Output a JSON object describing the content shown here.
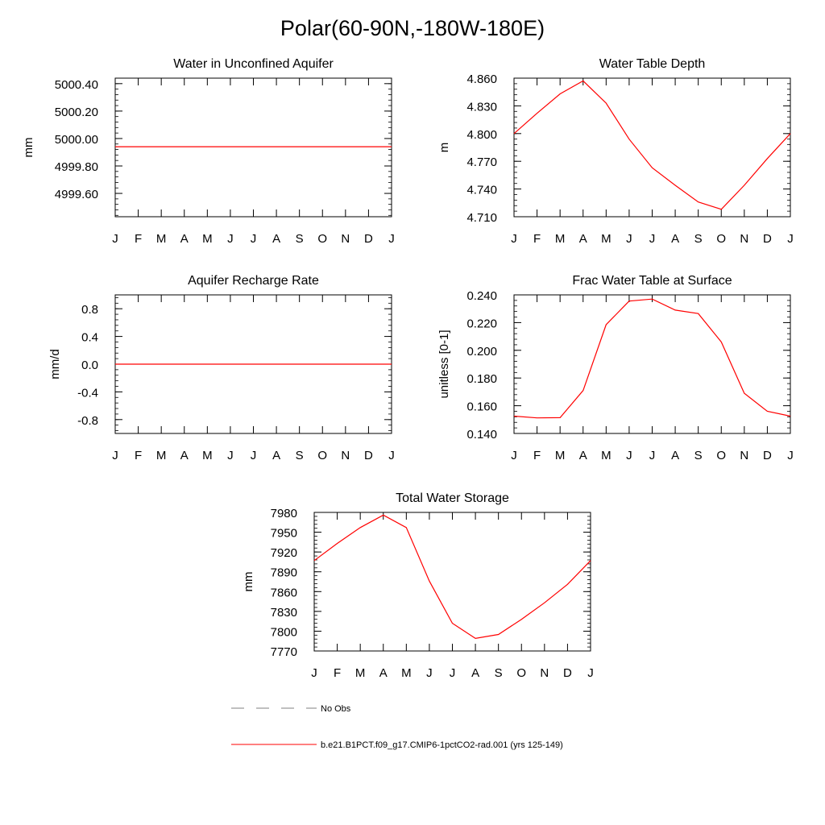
{
  "page_title": "Polar(60-90N,-180W-180E)",
  "colors": {
    "model_line": "#ff0000",
    "obs_line": "#808080",
    "axes": "#000000"
  },
  "legend": {
    "obs_label": "No Obs",
    "model_label": "b.e21.B1PCT.f09_g17.CMIP6-1pctCO2-rad.001 (yrs 125-149)"
  },
  "chart_data": [
    {
      "type": "line",
      "title": "Water in Unconfined Aquifer",
      "ylabel": "mm",
      "categories": [
        "J",
        "F",
        "M",
        "A",
        "M",
        "J",
        "J",
        "A",
        "S",
        "O",
        "N",
        "D",
        "J"
      ],
      "ylim": [
        4999.43,
        5000.44
      ],
      "yticks": [
        4999.6,
        4999.8,
        5000.0,
        5000.2,
        5000.4
      ],
      "ytick_labels": [
        "4999.60",
        "4999.80",
        "5000.00",
        "5000.20",
        "5000.40"
      ],
      "series": [
        {
          "values": [
            4999.94,
            4999.94,
            4999.94,
            4999.94,
            4999.94,
            4999.94,
            4999.94,
            4999.94,
            4999.94,
            4999.94,
            4999.94,
            4999.94,
            4999.94
          ]
        }
      ]
    },
    {
      "type": "line",
      "title": "Water Table Depth",
      "ylabel": "m",
      "categories": [
        "J",
        "F",
        "M",
        "A",
        "M",
        "J",
        "J",
        "A",
        "S",
        "O",
        "N",
        "D",
        "J"
      ],
      "ylim": [
        4.71,
        4.86
      ],
      "yticks": [
        4.71,
        4.74,
        4.77,
        4.8,
        4.83,
        4.86
      ],
      "ytick_labels": [
        "4.710",
        "4.740",
        "4.770",
        "4.800",
        "4.830",
        "4.860"
      ],
      "series": [
        {
          "values": [
            4.8,
            4.822,
            4.843,
            4.857,
            4.833,
            4.794,
            4.763,
            4.744,
            4.726,
            4.718,
            4.744,
            4.773,
            4.8
          ]
        }
      ]
    },
    {
      "type": "line",
      "title": "Aquifer Recharge Rate",
      "ylabel": "mm/d",
      "categories": [
        "J",
        "F",
        "M",
        "A",
        "M",
        "J",
        "J",
        "A",
        "S",
        "O",
        "N",
        "D",
        "J"
      ],
      "ylim": [
        -1.0,
        1.0
      ],
      "yticks": [
        -0.8,
        -0.4,
        0.0,
        0.4,
        0.8
      ],
      "ytick_labels": [
        "-0.8",
        "-0.4",
        "0.0",
        "0.4",
        "0.8"
      ],
      "series": [
        {
          "values": [
            0,
            0,
            0,
            0,
            0,
            0,
            0,
            0,
            0,
            0,
            0,
            0,
            0
          ]
        }
      ]
    },
    {
      "type": "line",
      "title": "Frac Water Table at Surface",
      "ylabel": "unitless [0-1]",
      "categories": [
        "J",
        "F",
        "M",
        "A",
        "M",
        "J",
        "J",
        "A",
        "S",
        "O",
        "N",
        "D",
        "J"
      ],
      "ylim": [
        0.14,
        0.24
      ],
      "yticks": [
        0.14,
        0.16,
        0.18,
        0.2,
        0.22,
        0.24
      ],
      "ytick_labels": [
        "0.140",
        "0.160",
        "0.180",
        "0.200",
        "0.220",
        "0.240"
      ],
      "series": [
        {
          "values": [
            0.1525,
            0.1512,
            0.1514,
            0.171,
            0.2185,
            0.2355,
            0.237,
            0.229,
            0.2265,
            0.206,
            0.169,
            0.156,
            0.1525
          ]
        }
      ]
    },
    {
      "type": "line",
      "title": "Total Water Storage",
      "ylabel": "mm",
      "categories": [
        "J",
        "F",
        "M",
        "A",
        "M",
        "J",
        "J",
        "A",
        "S",
        "O",
        "N",
        "D",
        "J"
      ],
      "ylim": [
        7770,
        7980
      ],
      "yticks": [
        7770,
        7800,
        7830,
        7860,
        7890,
        7920,
        7950,
        7980
      ],
      "ytick_labels": [
        "7770",
        "7800",
        "7830",
        "7860",
        "7890",
        "7920",
        "7950",
        "7980"
      ],
      "series": [
        {
          "values": [
            7907,
            7933,
            7957,
            7976,
            7957,
            7876,
            7812,
            7789,
            7795,
            7818,
            7843,
            7871,
            7907
          ]
        }
      ]
    }
  ]
}
